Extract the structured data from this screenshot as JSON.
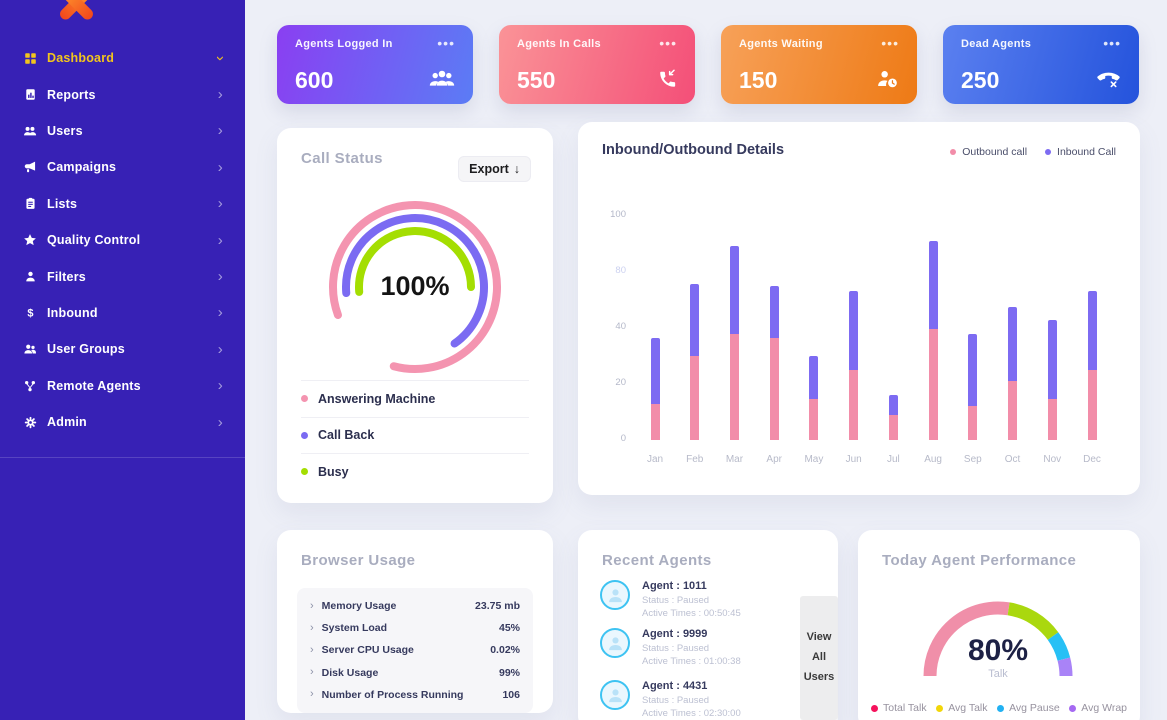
{
  "colors": {
    "sidebar_bg": "#3721b5",
    "page_bg": "#edeff7",
    "active_menu": "#f2c51d",
    "logo_orange": "#f1471d"
  },
  "sidebar": {
    "items": [
      {
        "label": "Dashboard",
        "icon": "dashboard-grid-icon",
        "active": true
      },
      {
        "label": "Reports",
        "icon": "reports-icon"
      },
      {
        "label": "Users",
        "icon": "users-icon"
      },
      {
        "label": "Campaigns",
        "icon": "campaigns-megaphone-icon"
      },
      {
        "label": "Lists",
        "icon": "lists-clipboard-icon"
      },
      {
        "label": "Quality Control",
        "icon": "quality-control-star-icon"
      },
      {
        "label": "Filters",
        "icon": "filters-person-icon"
      },
      {
        "label": "Inbound",
        "icon": "inbound-dollar-icon"
      },
      {
        "label": "User Groups",
        "icon": "user-groups-icon"
      },
      {
        "label": "Remote Agents",
        "icon": "remote-agents-network-icon"
      },
      {
        "label": "Admin",
        "icon": "admin-gear-icon"
      }
    ]
  },
  "stat_cards": [
    {
      "label": "Agents Logged In",
      "value": "600",
      "icon": "agents-group-icon",
      "menu_icon": "ellipsis-icon",
      "gradient": [
        "#8a3ff2",
        "#5b7cf5"
      ]
    },
    {
      "label": "Agents In Calls",
      "value": "550",
      "icon": "phone-incoming-icon",
      "menu_icon": "ellipsis-icon",
      "gradient": [
        "#fa9397",
        "#f44f78"
      ]
    },
    {
      "label": "Agents Waiting",
      "value": "150",
      "icon": "agent-waiting-clock-icon",
      "menu_icon": "ellipsis-icon",
      "gradient": [
        "#f7a159",
        "#ee7a15"
      ]
    },
    {
      "label": "Dead Agents",
      "value": "250",
      "icon": "phone-dead-icon",
      "menu_icon": "ellipsis-icon",
      "gradient": [
        "#5b80f0",
        "#2453dc"
      ]
    }
  ],
  "call_status": {
    "title": "Call Status",
    "export_label": "Export",
    "export_icon": "download-arrow-icon",
    "center_value": "100%",
    "rings": [
      {
        "label": "Answering Machine",
        "color": "#f494b0",
        "sweep_deg": 305
      },
      {
        "label": "Call Back",
        "color": "#7b6bf2",
        "sweep_deg": 240
      },
      {
        "label": "Busy",
        "color": "#a4de02",
        "sweep_deg": 185
      }
    ]
  },
  "chart_data": {
    "type": "bar",
    "variant": "stacked",
    "title": "Inbound/Outbound Details",
    "categories": [
      "Jan",
      "Feb",
      "Mar",
      "Apr",
      "May",
      "Jun",
      "Jul",
      "Aug",
      "Sep",
      "Oct",
      "Nov",
      "Dec"
    ],
    "series": [
      {
        "name": "Outbound call",
        "color": "#f28da9",
        "values": [
          16,
          37,
          47,
          45,
          18,
          31,
          11,
          49,
          15,
          26,
          18,
          31
        ]
      },
      {
        "name": "Inbound Call",
        "color": "#7d6bf2",
        "values": [
          29,
          32,
          39,
          23,
          19,
          35,
          9,
          39,
          32,
          33,
          35,
          35
        ]
      }
    ],
    "y_ticks": [
      "100",
      "80",
      "40",
      "20",
      "0"
    ],
    "ylim": [
      0,
      100
    ],
    "grid": false,
    "legend_position": "top-right"
  },
  "browser_usage": {
    "title": "Browser Usage",
    "rows": [
      {
        "label": "Memory Usage",
        "value": "23.75 mb"
      },
      {
        "label": "System Load",
        "value": "45%"
      },
      {
        "label": "Server CPU Usage",
        "value": "0.02%"
      },
      {
        "label": "Disk Usage",
        "value": "99%"
      },
      {
        "label": "Number of Process Running",
        "value": "106"
      }
    ]
  },
  "recent_agents": {
    "title": "Recent Agents",
    "view_all_label": "View All Users",
    "agents": [
      {
        "name": "Agent : 1011",
        "status": "Status : Paused",
        "active": "Active Times : 00:50:45"
      },
      {
        "name": "Agent : 9999",
        "status": "Status : Paused",
        "active": "Active Times : 01:00:38"
      },
      {
        "name": "Agent : 4431",
        "status": "Status : Paused",
        "active": "Active Times : 02:30:00"
      }
    ]
  },
  "performance": {
    "title": "Today Agent Performance",
    "center_value": "80%",
    "center_label": "Talk",
    "segments": [
      {
        "label": "Total Talk",
        "arc_color": "#f08fa9",
        "dot_color": "#f5125c",
        "pct": 55
      },
      {
        "label": "Avg Talk",
        "arc_color": "#aad80e",
        "dot_color": "#f2d609",
        "pct": 25
      },
      {
        "label": "Avg Pause",
        "arc_color": "#27c0f5",
        "dot_color": "#22b1f2",
        "pct": 12
      },
      {
        "label": "Avg Wrap",
        "arc_color": "#a983f7",
        "dot_color": "#a569f2",
        "pct": 8
      }
    ]
  }
}
